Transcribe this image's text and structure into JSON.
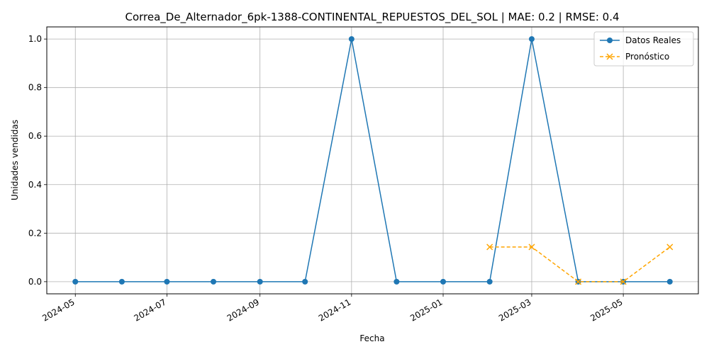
{
  "chart_data": {
    "type": "line",
    "title": "Correa_De_Alternador_6pk-1388-CONTINENTAL_REPUESTOS_DEL_SOL | MAE: 0.2 | RMSE: 0.4",
    "xlabel": "Fecha",
    "ylabel": "Unidades vendidas",
    "grid": true,
    "legend_position": "top-right",
    "x_ticks": [
      "2024-05",
      "2024-07",
      "2024-09",
      "2024-11",
      "2025-01",
      "2025-03",
      "2025-05"
    ],
    "y_ticks": [
      "0.0",
      "0.2",
      "0.4",
      "0.6",
      "0.8",
      "1.0"
    ],
    "ylim": [
      -0.05,
      1.05
    ],
    "xlim": [
      "2024-04-12",
      "2025-06-20"
    ],
    "series": [
      {
        "name": "Datos Reales",
        "color": "#1f77b4",
        "marker": "circle",
        "linestyle": "solid",
        "x": [
          "2024-05-01",
          "2024-06-01",
          "2024-07-01",
          "2024-08-01",
          "2024-09-01",
          "2024-10-01",
          "2024-11-01",
          "2024-12-01",
          "2025-01-01",
          "2025-02-01",
          "2025-03-01",
          "2025-04-01",
          "2025-05-01",
          "2025-06-01"
        ],
        "values": [
          0,
          0,
          0,
          0,
          0,
          0,
          1,
          0,
          0,
          0,
          1,
          0,
          0,
          0
        ]
      },
      {
        "name": "Pronóstico",
        "color": "#ffa500",
        "marker": "x",
        "linestyle": "dashed",
        "x": [
          "2025-02-01",
          "2025-03-01",
          "2025-04-01",
          "2025-05-01",
          "2025-06-01"
        ],
        "values": [
          0.143,
          0.143,
          0,
          0,
          0.143
        ]
      }
    ]
  }
}
